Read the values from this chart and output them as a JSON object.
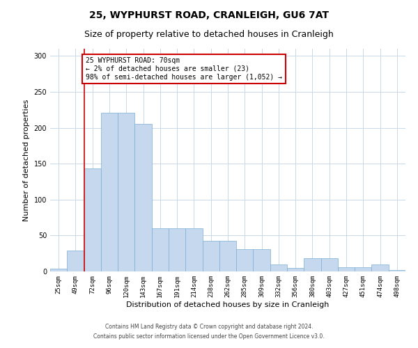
{
  "title": "25, WYPHURST ROAD, CRANLEIGH, GU6 7AT",
  "subtitle": "Size of property relative to detached houses in Cranleigh",
  "xlabel": "Distribution of detached houses by size in Cranleigh",
  "ylabel": "Number of detached properties",
  "categories": [
    "25sqm",
    "49sqm",
    "72sqm",
    "96sqm",
    "120sqm",
    "143sqm",
    "167sqm",
    "191sqm",
    "214sqm",
    "238sqm",
    "262sqm",
    "285sqm",
    "309sqm",
    "332sqm",
    "356sqm",
    "380sqm",
    "403sqm",
    "427sqm",
    "451sqm",
    "474sqm",
    "498sqm"
  ],
  "values": [
    4,
    29,
    143,
    221,
    221,
    205,
    60,
    60,
    60,
    43,
    43,
    31,
    31,
    10,
    5,
    18,
    18,
    6,
    6,
    10,
    2
  ],
  "bar_color": "#c5d8ed",
  "bar_edge_color": "#7aafd4",
  "vline_pos": 1.5,
  "vline_color": "#cc0000",
  "annotation_text": "25 WYPHURST ROAD: 70sqm\n← 2% of detached houses are smaller (23)\n98% of semi-detached houses are larger (1,052) →",
  "annotation_box_color": "#ffffff",
  "annotation_box_edge": "#cc0000",
  "ylim_max": 310,
  "yticks": [
    0,
    50,
    100,
    150,
    200,
    250,
    300
  ],
  "footer_line1": "Contains HM Land Registry data © Crown copyright and database right 2024.",
  "footer_line2": "Contains public sector information licensed under the Open Government Licence v3.0.",
  "title_fontsize": 10,
  "subtitle_fontsize": 9,
  "tick_fontsize": 6.5,
  "ylabel_fontsize": 8,
  "xlabel_fontsize": 8,
  "annotation_fontsize": 7,
  "footer_fontsize": 5.5
}
